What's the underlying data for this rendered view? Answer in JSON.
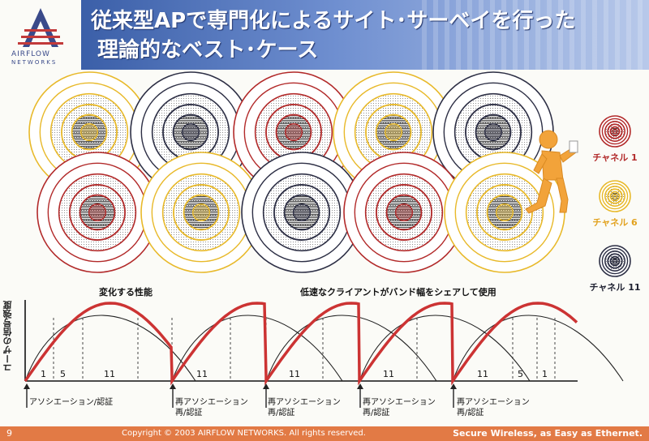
{
  "logo": {
    "name": "AIRFLOW",
    "sub": "NETWORKS"
  },
  "title": {
    "line1": "従来型APで専門化によるサイト･サーベイを行った",
    "line2": "理論的なベスト･ケース"
  },
  "colors": {
    "channel1": "#b22a2a",
    "channel6": "#e8b92a",
    "channel11": "#2d2f45",
    "header": "#4a6cb5",
    "footer": "#e27a45",
    "curve_bold": "#cc3333"
  },
  "legend": [
    {
      "label": "チャネル 1",
      "color": "#b22a2a"
    },
    {
      "label": "チャネル 6",
      "color": "#e8b92a"
    },
    {
      "label": "チャネル 11",
      "color": "#2d2f45"
    }
  ],
  "cells": {
    "row1": [
      "channel6",
      "channel11",
      "channel1",
      "channel6",
      "channel11"
    ],
    "row2": [
      "channel1",
      "channel6",
      "channel11",
      "channel1",
      "channel6"
    ]
  },
  "walker_icon": "walking-person-laptop-icon",
  "graph": {
    "y_axis_label": "ユーザの信号強度",
    "annotation_left": "変化する性能",
    "annotation_right": "低速なクライアントがバンド幅をシェアして使用",
    "channel_labels": [
      "1",
      "5",
      "11",
      "11",
      "11",
      "11",
      "11",
      "5",
      "1"
    ],
    "events": [
      "アソシエーション/認証",
      "再アソシエーション\n再/認証",
      "再アソシエーション\n再/認証",
      "再アソシエーション\n再/認証",
      "再アソシエーション\n再/認証"
    ]
  },
  "footer": {
    "page_number": "9",
    "copyright": "Copyright © 2003 AIRFLOW NETWORKS. All rights reserved.",
    "tagline": "Secure Wireless, as Easy as Ethernet."
  }
}
